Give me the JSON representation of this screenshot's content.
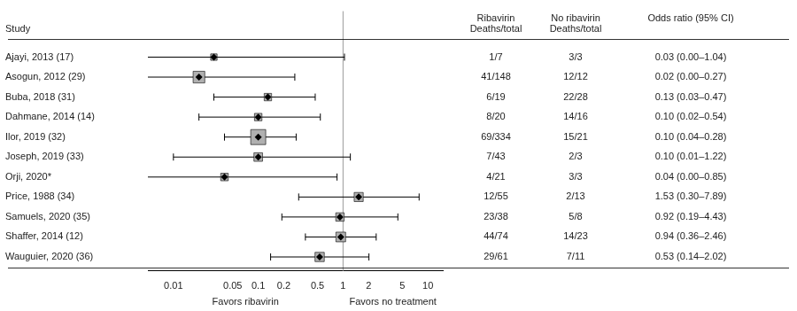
{
  "chart_data": {
    "type": "forest",
    "log": "x",
    "xlim": [
      0.005,
      15
    ],
    "xticks": [
      0.01,
      0.05,
      0.1,
      0.2,
      0.5,
      1,
      2,
      5,
      10
    ],
    "grid": false,
    "row_header": "Study",
    "categories": [
      "Ajayi, 2013 (17)",
      "Asogun, 2012 (29)",
      "Buba, 2018 (31)",
      "Dahmane, 2014 (14)",
      "Ilor, 2019 (32)",
      "Joseph, 2019 (33)",
      "Orji, 2020*",
      "Price, 1988 (34)",
      "Samuels, 2020 (35)",
      "Shaffer, 2014 (12)",
      "Wauguier, 2020 (36)"
    ],
    "values": [
      0.03,
      0.02,
      0.13,
      0.1,
      0.1,
      0.1,
      0.04,
      1.53,
      0.92,
      0.94,
      0.53
    ],
    "ci_lo": [
      0.005,
      0.005,
      0.03,
      0.02,
      0.04,
      0.01,
      0.005,
      0.3,
      0.19,
      0.36,
      0.14
    ],
    "ci_hi": [
      1.04,
      0.27,
      0.47,
      0.54,
      0.28,
      1.22,
      0.85,
      7.89,
      4.43,
      2.46,
      2.02
    ],
    "sizes": [
      7,
      148,
      19,
      20,
      334,
      43,
      21,
      55,
      38,
      74,
      61
    ],
    "columns": [
      {
        "header": [
          "Ribavirin",
          "Deaths/total"
        ],
        "values": [
          "1/7",
          "41/148",
          "6/19",
          "8/20",
          "69/334",
          "7/43",
          "4/21",
          "12/55",
          "23/38",
          "44/74",
          "29/61"
        ]
      },
      {
        "header": [
          "No ribavirin",
          "Deaths/total"
        ],
        "values": [
          "3/3",
          "12/12",
          "22/28",
          "14/16",
          "15/21",
          "2/3",
          "3/3",
          "2/13",
          "5/8",
          "14/23",
          "7/11"
        ]
      },
      {
        "header": [
          "Odds ratio (95% CI)"
        ],
        "values": [
          "0.03 (0.00–1.04)",
          "0.02 (0.00–0.27)",
          "0.13 (0.03–0.47)",
          "0.10 (0.02–0.54)",
          "0.10 (0.04–0.28)",
          "0.10 (0.01–1.22)",
          "0.04 (0.00–0.85)",
          "1.53 (0.30–7.89)",
          "0.92 (0.19–4.43)",
          "0.94 (0.36–2.46)",
          "0.53 (0.14–2.02)"
        ]
      }
    ],
    "xlabel_left": "Favors ribavirin",
    "xlabel_right": "Favors no treatment",
    "reference_x": 1,
    "reference_color": "#999999",
    "color": "#000000",
    "box_color": "#b0b0b0"
  }
}
